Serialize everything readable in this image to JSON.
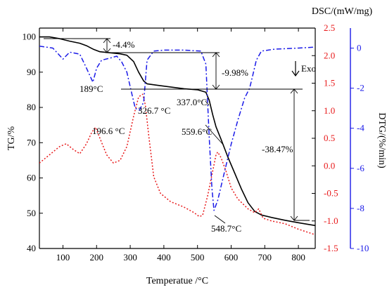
{
  "chart_data": {
    "type": "line",
    "xlabel": "Temperatue /°C",
    "x_ticks": [
      100,
      200,
      300,
      400,
      500,
      600,
      700,
      800
    ],
    "xlim": [
      30,
      850
    ],
    "axes": {
      "tg": {
        "label": "TG/%",
        "ticks": [
          40,
          50,
          60,
          70,
          80,
          90,
          100
        ],
        "range": [
          40,
          102.5
        ],
        "color": "#000000"
      },
      "dsc": {
        "label": "DSC/(mW/mg)",
        "ticks": [
          2.5,
          2.0,
          1.5,
          1.0,
          0.5,
          0.0,
          -0.5,
          -1.0,
          -1.5
        ],
        "range": [
          -1.5,
          2.5
        ],
        "color": "#e8191a"
      },
      "dtg": {
        "label": "DTG/(%/min)",
        "ticks": [
          0,
          -2,
          -4,
          -6,
          -8,
          -10
        ],
        "range": [
          -10,
          1
        ],
        "color": "#1a1ae8"
      }
    },
    "series": [
      {
        "axis": "tg",
        "style": "solid",
        "color": "#000000",
        "points": [
          [
            30,
            100
          ],
          [
            60,
            100
          ],
          [
            90,
            99.5
          ],
          [
            120,
            98.8
          ],
          [
            150,
            98.2
          ],
          [
            170,
            97.5
          ],
          [
            190,
            96.5
          ],
          [
            210,
            95.8
          ],
          [
            240,
            95.5
          ],
          [
            270,
            95.2
          ],
          [
            290,
            94.8
          ],
          [
            310,
            93
          ],
          [
            325,
            90
          ],
          [
            340,
            87.5
          ],
          [
            350,
            86.7
          ],
          [
            380,
            86.3
          ],
          [
            420,
            85.8
          ],
          [
            460,
            85.3
          ],
          [
            500,
            85
          ],
          [
            525,
            84.3
          ],
          [
            535,
            82
          ],
          [
            545,
            78
          ],
          [
            555,
            74.5
          ],
          [
            570,
            71
          ],
          [
            590,
            66
          ],
          [
            610,
            61.5
          ],
          [
            630,
            57
          ],
          [
            650,
            53
          ],
          [
            670,
            50.5
          ],
          [
            690,
            49.5
          ],
          [
            720,
            48.8
          ],
          [
            760,
            48
          ],
          [
            800,
            47.3
          ],
          [
            850,
            46.5
          ]
        ]
      },
      {
        "axis": "dsc",
        "style": "dot",
        "color": "#e8191a",
        "points": [
          [
            30,
            0.05
          ],
          [
            60,
            0.2
          ],
          [
            90,
            0.35
          ],
          [
            110,
            0.4
          ],
          [
            130,
            0.3
          ],
          [
            150,
            0.22
          ],
          [
            170,
            0.4
          ],
          [
            185,
            0.6
          ],
          [
            197,
            0.7
          ],
          [
            210,
            0.5
          ],
          [
            230,
            0.2
          ],
          [
            250,
            0.05
          ],
          [
            270,
            0.1
          ],
          [
            290,
            0.35
          ],
          [
            310,
            0.9
          ],
          [
            325,
            1.25
          ],
          [
            337,
            1.3
          ],
          [
            345,
            1.1
          ],
          [
            355,
            0.55
          ],
          [
            370,
            -0.2
          ],
          [
            390,
            -0.5
          ],
          [
            420,
            -0.65
          ],
          [
            460,
            -0.75
          ],
          [
            490,
            -0.85
          ],
          [
            505,
            -0.92
          ],
          [
            515,
            -0.9
          ],
          [
            530,
            -0.55
          ],
          [
            545,
            -0.1
          ],
          [
            555,
            0.2
          ],
          [
            560,
            0.25
          ],
          [
            570,
            0.15
          ],
          [
            585,
            -0.1
          ],
          [
            600,
            -0.4
          ],
          [
            620,
            -0.6
          ],
          [
            650,
            -0.78
          ],
          [
            670,
            -0.85
          ],
          [
            682,
            -0.78
          ],
          [
            695,
            -0.95
          ],
          [
            720,
            -1.0
          ],
          [
            760,
            -1.05
          ],
          [
            800,
            -1.15
          ],
          [
            850,
            -1.25
          ]
        ]
      },
      {
        "axis": "dtg",
        "style": "dashdot",
        "color": "#1a1ae8",
        "points": [
          [
            30,
            0.1
          ],
          [
            70,
            0.0
          ],
          [
            100,
            -0.55
          ],
          [
            120,
            -0.2
          ],
          [
            150,
            -0.3
          ],
          [
            170,
            -1.0
          ],
          [
            189,
            -1.7
          ],
          [
            200,
            -1.0
          ],
          [
            215,
            -0.6
          ],
          [
            240,
            -0.5
          ],
          [
            260,
            -0.4
          ],
          [
            275,
            -0.7
          ],
          [
            290,
            -1.2
          ],
          [
            305,
            -2.3
          ],
          [
            315,
            -3.0
          ],
          [
            327,
            -3.1
          ],
          [
            340,
            -2.7
          ],
          [
            350,
            -0.6
          ],
          [
            370,
            -0.15
          ],
          [
            400,
            -0.1
          ],
          [
            460,
            -0.1
          ],
          [
            510,
            -0.15
          ],
          [
            525,
            -0.8
          ],
          [
            535,
            -4.5
          ],
          [
            543,
            -7.0
          ],
          [
            549,
            -8.1
          ],
          [
            560,
            -7.6
          ],
          [
            580,
            -6.2
          ],
          [
            600,
            -4.8
          ],
          [
            620,
            -3.6
          ],
          [
            640,
            -2.5
          ],
          [
            655,
            -2.0
          ],
          [
            665,
            -1.3
          ],
          [
            675,
            -0.6
          ],
          [
            690,
            -0.15
          ],
          [
            730,
            -0.05
          ],
          [
            800,
            0.0
          ],
          [
            850,
            0.05
          ]
        ]
      }
    ],
    "annotations": [
      "-4.4%",
      "-9.98%",
      "-38.47%",
      "189°C",
      "326.7 °C",
      "337.0°C",
      "196.6 °C",
      "559.6°C",
      "548.7°C",
      "Exo"
    ]
  }
}
